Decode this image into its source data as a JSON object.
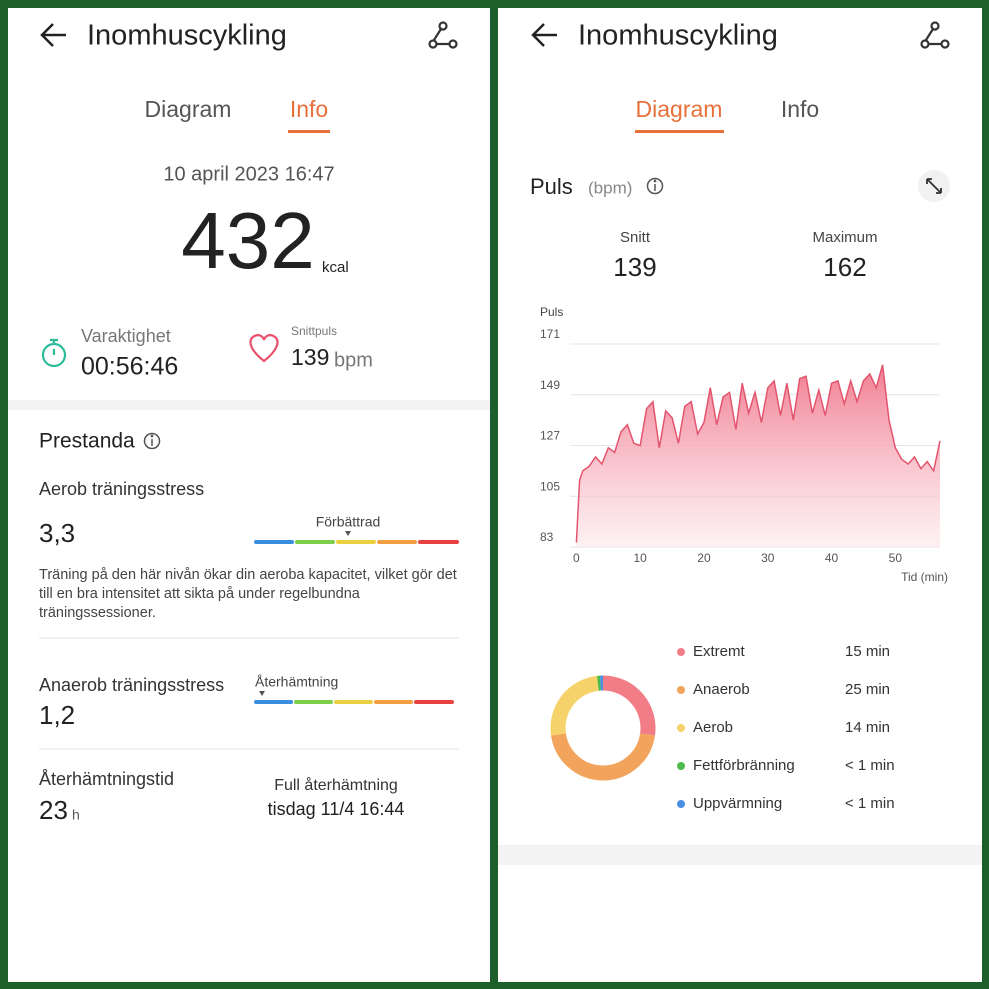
{
  "left": {
    "title": "Inomhuscykling",
    "tabs": [
      "Diagram",
      "Info"
    ],
    "date": "10 april 2023 16:47",
    "calories": {
      "value": "432",
      "unit": "kcal"
    },
    "duration": {
      "label": "Varaktighet",
      "value": "00:56:46"
    },
    "avg_pulse": {
      "label": "Snittpuls",
      "value": "139",
      "unit": "bpm"
    },
    "section": "Prestanda",
    "aerobic": {
      "title": "Aerob träningsstress",
      "value": "3,3",
      "level": "Förbättrad",
      "description": "Träning på den här nivån ökar din aeroba kapacitet, vilket gör det till en bra intensitet att sikta på under regelbundna träningssessioner."
    },
    "anaerobic": {
      "title": "Anaerob träningsstress",
      "value": "1,2",
      "level": "Återhämtning"
    },
    "recovery": {
      "title": "Återhämtningstid",
      "value": "23",
      "unit": "h",
      "full_label": "Full återhämtning",
      "full_value": "tisdag 11/4 16:44"
    }
  },
  "right": {
    "title": "Inomhuscykling",
    "tabs": [
      "Diagram",
      "Info"
    ],
    "section": "Puls",
    "unit": "(bpm)",
    "avg": {
      "label": "Snitt",
      "value": "139"
    },
    "max": {
      "label": "Maximum",
      "value": "162"
    }
  },
  "chart_data": [
    {
      "type": "area",
      "ylabel": "Puls",
      "xlabel": "Tid (min)",
      "x": [
        0,
        0.5,
        1,
        2,
        3,
        4,
        5,
        6,
        7,
        8,
        9,
        10,
        11,
        12,
        13,
        14,
        15,
        16,
        17,
        18,
        19,
        20,
        21,
        22,
        23,
        24,
        25,
        26,
        27,
        28,
        29,
        30,
        31,
        32,
        33,
        34,
        35,
        36,
        37,
        38,
        39,
        40,
        41,
        42,
        43,
        44,
        45,
        46,
        47,
        48,
        49,
        50,
        51,
        52,
        53,
        54,
        55,
        56,
        57
      ],
      "values": [
        85,
        112,
        116,
        118,
        122,
        119,
        126,
        124,
        133,
        136,
        128,
        127,
        143,
        146,
        126,
        142,
        139,
        128,
        144,
        146,
        132,
        137,
        152,
        136,
        148,
        150,
        134,
        154,
        141,
        150,
        137,
        152,
        155,
        140,
        154,
        138,
        156,
        157,
        141,
        151,
        140,
        154,
        155,
        145,
        155,
        146,
        155,
        158,
        152,
        162,
        138,
        126,
        121,
        119,
        122,
        117,
        120,
        116,
        129
      ],
      "xlim": [
        -1,
        57
      ],
      "ylim": [
        83,
        171
      ],
      "xticks": [
        0,
        10,
        20,
        30,
        40,
        50
      ],
      "yticks": [
        83,
        105,
        127,
        149,
        171
      ],
      "color": "#e3546d",
      "grid": true
    },
    {
      "type": "donut",
      "categories": [
        "Extremt",
        "Anaerob",
        "Aerob",
        "Fettförbränning",
        "Uppvärmning"
      ],
      "values": [
        15,
        25,
        14,
        0.5,
        0.5
      ],
      "value_labels": [
        "15 min",
        "25 min",
        "14 min",
        "< 1 min",
        "< 1 min"
      ],
      "colors": [
        "#f27d86",
        "#f2a35c",
        "#f5d36a",
        "#4cbb4c",
        "#4a90e2"
      ]
    }
  ]
}
